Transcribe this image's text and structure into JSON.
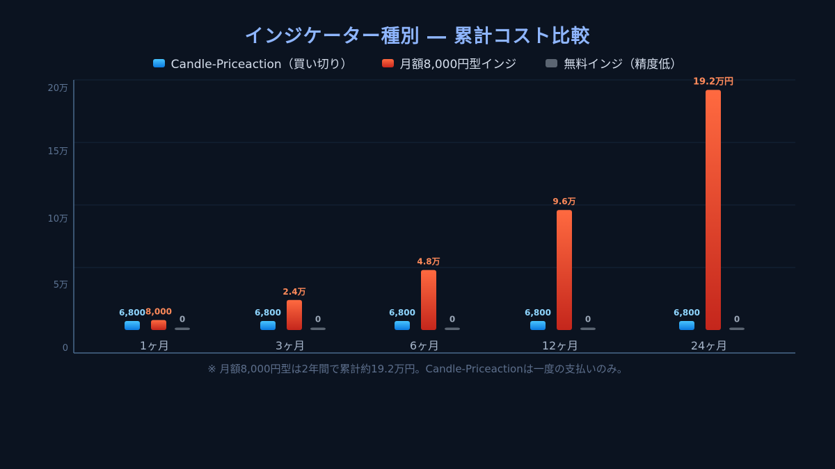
{
  "title": "インジケーター種別 ― 累計コスト比較",
  "footnote": "※ 月額8,000円型は2年間で累計約19.2万円。Candle-Priceactionは一度の支払いのみ。",
  "colors": {
    "background": "#0b1320",
    "title": "#8fb6ff",
    "blue_top": "#48c4ff",
    "blue_bottom": "#0b7ae0",
    "red_top": "#ff6a40",
    "red_bottom": "#c4261c",
    "gray": "#5b6572",
    "label_blue": "#8fd6ff",
    "label_red": "#ff8a5a",
    "label_gray": "#9aa6b6",
    "axis": "#4a6a8c",
    "grid": "#16243a",
    "tick": "#5d7494"
  },
  "chart_data": {
    "type": "bar",
    "categories": [
      "1ヶ月",
      "3ヶ月",
      "6ヶ月",
      "12ヶ月",
      "24ヶ月"
    ],
    "y_ticks": [
      0,
      50000,
      100000,
      150000,
      200000
    ],
    "y_tick_labels": [
      "0",
      "5万",
      "10万",
      "15万",
      "20万"
    ],
    "ylim": [
      0,
      200000
    ],
    "grid": true,
    "legend_position": "top",
    "series": [
      {
        "name": "Candle-Priceaction（買い切り）",
        "color": "blue",
        "values": [
          6800,
          6800,
          6800,
          6800,
          6800
        ],
        "labels": [
          "6,800",
          "6,800",
          "6,800",
          "6,800",
          "6,800"
        ]
      },
      {
        "name": "月額8,000円型インジ",
        "color": "red",
        "values": [
          8000,
          24000,
          48000,
          96000,
          192000
        ],
        "labels": [
          "8,000",
          "2.4万",
          "4.8万",
          "9.6万",
          "19.2万円"
        ]
      },
      {
        "name": "無料インジ（精度低）",
        "color": "gray",
        "values": [
          0,
          0,
          0,
          0,
          0
        ],
        "labels": [
          "0",
          "0",
          "0",
          "0",
          "0"
        ]
      }
    ]
  }
}
